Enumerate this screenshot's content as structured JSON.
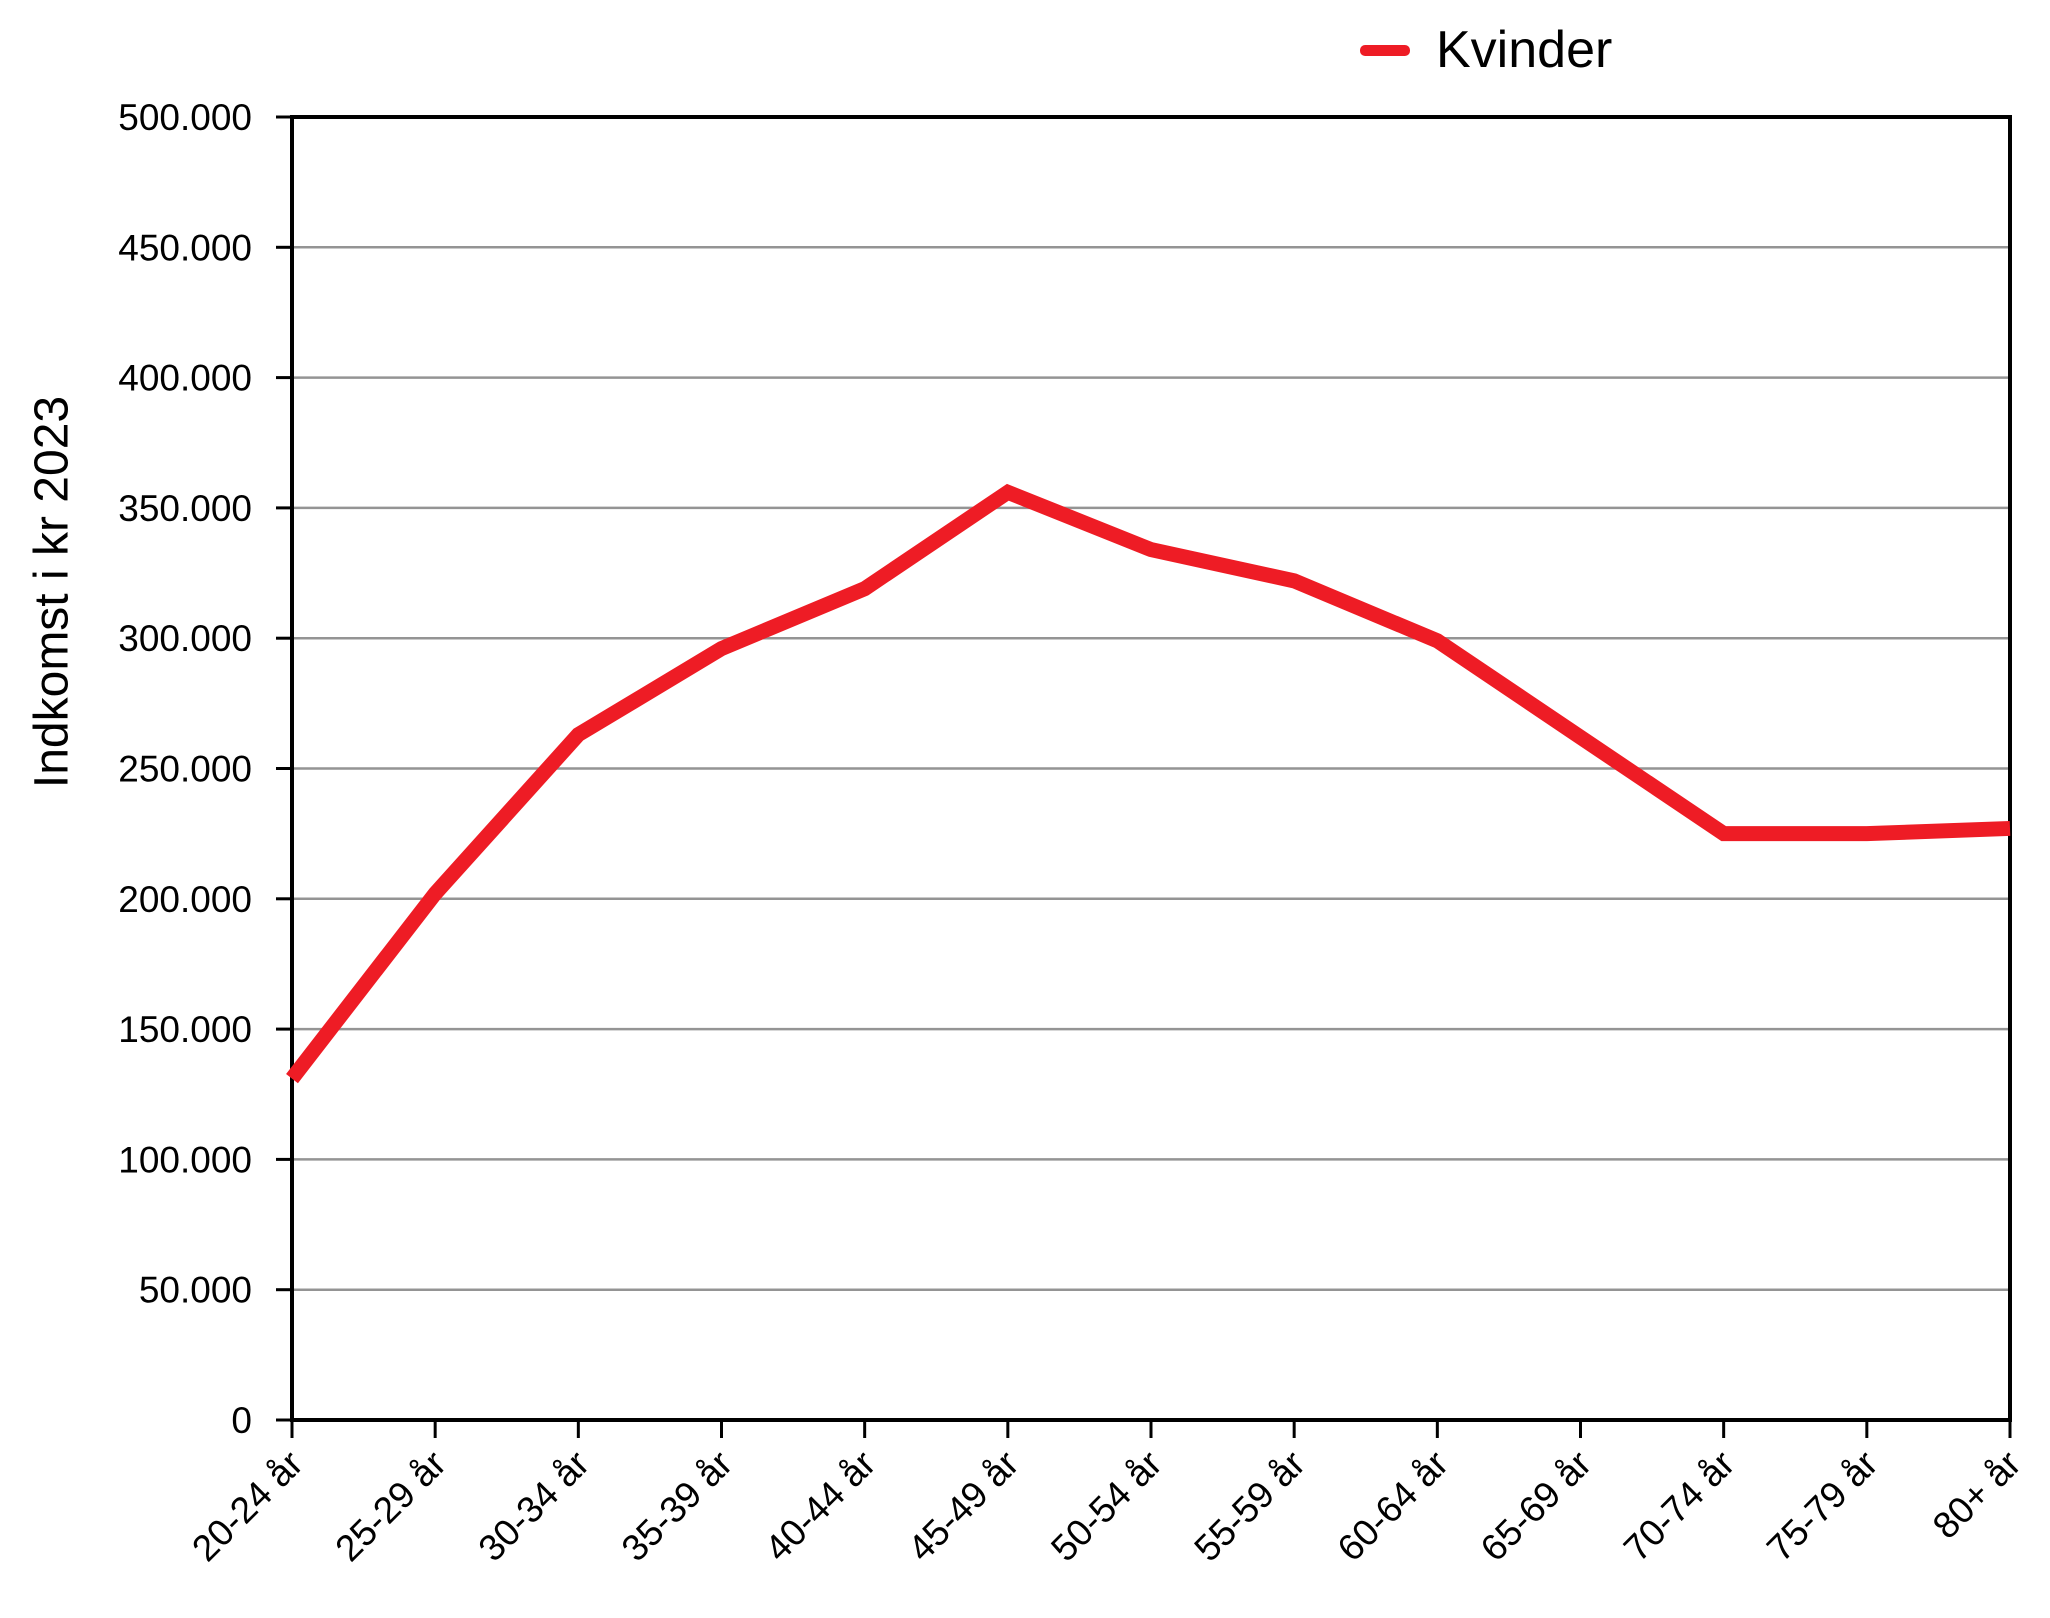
{
  "legend": {
    "series_label": "Kvinder"
  },
  "y_axis_title": "Indkomst i kr 2023",
  "colors": {
    "series": "#ee1c25",
    "gridline": "#949494",
    "axis": "#000000",
    "background": "#ffffff"
  },
  "chart_data": {
    "type": "line",
    "categories": [
      "20-24 år",
      "25-29 år",
      "30-34 år",
      "35-39 år",
      "40-44 år",
      "45-49 år",
      "50-54 år",
      "55-59 år",
      "60-64 år",
      "65-69 år",
      "70-74 år",
      "75-79 år",
      "80+ år"
    ],
    "series": [
      {
        "name": "Kvinder",
        "color": "#ee1c25",
        "values": [
          131000,
          202000,
          263000,
          296000,
          319000,
          356000,
          334000,
          322000,
          299000,
          262000,
          225000,
          225000,
          227000
        ]
      }
    ],
    "title": "",
    "xlabel": "",
    "ylabel": "Indkomst i kr 2023",
    "ylim": [
      0,
      500000
    ],
    "y_tick_step": 50000,
    "y_tick_labels": [
      "0",
      "50.000",
      "100.000",
      "150.000",
      "200.000",
      "250.000",
      "300.000",
      "350.000",
      "400.000",
      "450.000",
      "500.000"
    ],
    "grid": true,
    "legend_position": "top-right"
  }
}
